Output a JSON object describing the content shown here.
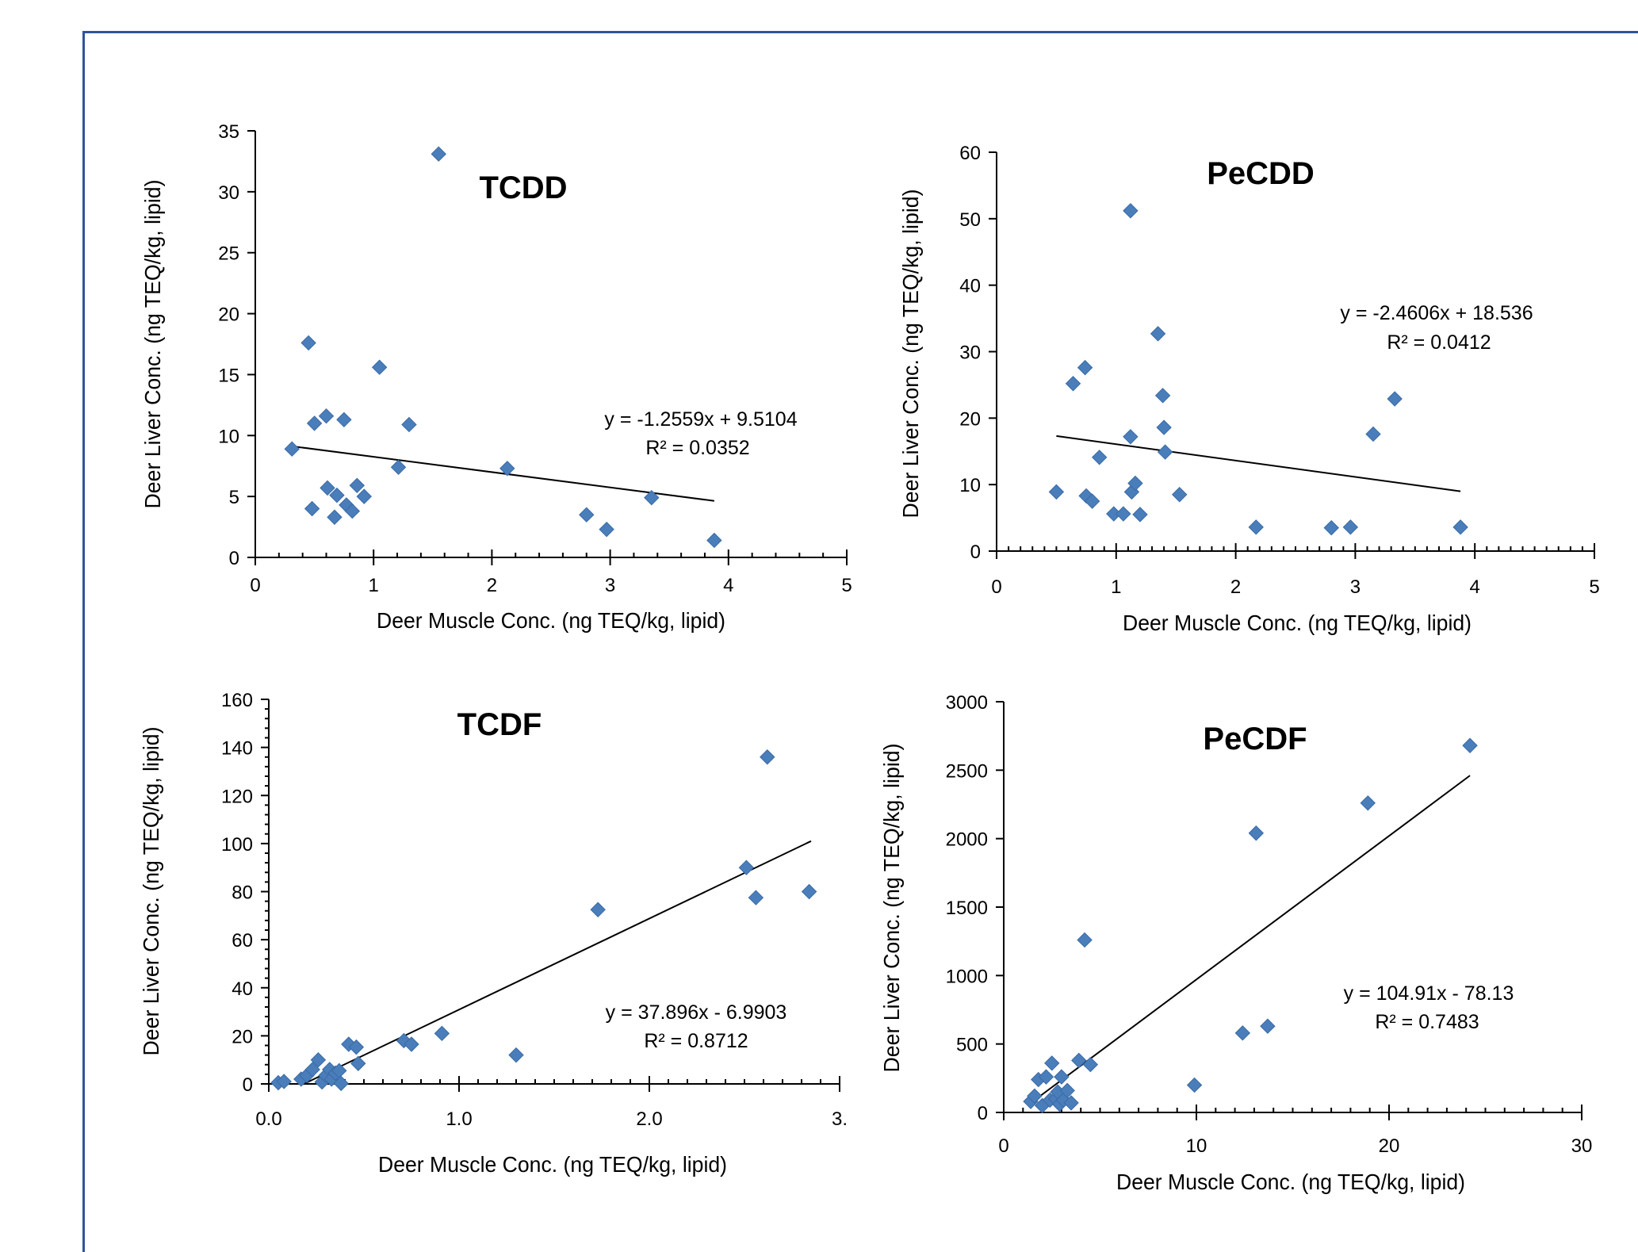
{
  "chart_data": [
    {
      "type": "scatter",
      "title": "TCDD",
      "xlabel": "Deer Muscle Conc. (ng TEQ/kg, lipid)",
      "ylabel": "Deer Liver Conc. (ng TEQ/kg, lipid)",
      "xlim": [
        0,
        5
      ],
      "ylim": [
        0,
        35
      ],
      "x_ticks": [
        "0",
        "1",
        "2",
        "3",
        "4",
        "5"
      ],
      "y_ticks": [
        "0",
        "5",
        "10",
        "15",
        "20",
        "25",
        "30",
        "35"
      ],
      "trendline": {
        "slope": -1.2559,
        "intercept": 9.5104,
        "x_range": [
          0.31,
          3.88
        ]
      },
      "equation": "y = -1.2559x + 9.5104",
      "r_squared": "R² = 0.0352",
      "marker_color": "#4a7ebb",
      "points": [
        [
          0.31,
          8.9
        ],
        [
          0.45,
          17.6
        ],
        [
          0.48,
          4.0
        ],
        [
          0.5,
          11.0
        ],
        [
          0.6,
          11.6
        ],
        [
          0.61,
          5.7
        ],
        [
          0.67,
          3.3
        ],
        [
          0.69,
          5.1
        ],
        [
          0.75,
          11.3
        ],
        [
          0.77,
          4.3
        ],
        [
          0.82,
          3.8
        ],
        [
          0.86,
          5.9
        ],
        [
          0.92,
          5.0
        ],
        [
          1.05,
          15.6
        ],
        [
          1.21,
          7.4
        ],
        [
          1.3,
          10.9
        ],
        [
          1.55,
          33.1
        ],
        [
          2.13,
          7.3
        ],
        [
          2.8,
          3.5
        ],
        [
          2.97,
          2.3
        ],
        [
          3.35,
          4.9
        ],
        [
          3.88,
          1.4
        ]
      ]
    },
    {
      "type": "scatter",
      "title": "PeCDD",
      "xlabel": "Deer Muscle Conc. (ng TEQ/kg, lipid)",
      "ylabel": "Deer Liver Conc. (ng TEQ/kg, lipid)",
      "xlim": [
        0,
        5
      ],
      "ylim": [
        0,
        60
      ],
      "x_ticks": [
        "0",
        "1",
        "2",
        "3",
        "4",
        "5"
      ],
      "y_ticks": [
        "0",
        "10",
        "20",
        "30",
        "40",
        "50",
        "60"
      ],
      "trendline": {
        "slope": -2.4606,
        "intercept": 18.536,
        "x_range": [
          0.5,
          3.88
        ]
      },
      "equation": "y = -2.4606x + 18.536",
      "r_squared": "R² = 0.0412",
      "marker_color": "#4a7ebb",
      "points": [
        [
          0.5,
          8.9
        ],
        [
          0.64,
          25.2
        ],
        [
          0.74,
          27.6
        ],
        [
          0.75,
          8.3
        ],
        [
          0.8,
          7.5
        ],
        [
          0.86,
          14.1
        ],
        [
          0.98,
          5.6
        ],
        [
          1.06,
          5.6
        ],
        [
          1.12,
          17.2
        ],
        [
          1.12,
          51.2
        ],
        [
          1.13,
          8.9
        ],
        [
          1.16,
          10.2
        ],
        [
          1.2,
          5.5
        ],
        [
          1.35,
          32.7
        ],
        [
          1.39,
          23.4
        ],
        [
          1.4,
          18.6
        ],
        [
          1.41,
          14.9
        ],
        [
          1.53,
          8.5
        ],
        [
          2.17,
          3.6
        ],
        [
          2.8,
          3.5
        ],
        [
          2.96,
          3.6
        ],
        [
          3.15,
          17.6
        ],
        [
          3.33,
          22.9
        ],
        [
          3.88,
          3.6
        ]
      ]
    },
    {
      "type": "scatter",
      "title": "TCDF",
      "xlabel": "Deer Muscle Conc. (ng TEQ/kg, lipid)",
      "ylabel": "Deer Liver Conc. (ng TEQ/kg, lipid)",
      "xlim": [
        0,
        3
      ],
      "ylim": [
        0,
        160
      ],
      "x_ticks": [
        "0.0",
        "1.0",
        "2.0",
        "3."
      ],
      "y_ticks": [
        "0",
        "20",
        "40",
        "60",
        "80",
        "100",
        "120",
        "140",
        "160"
      ],
      "trendline": {
        "slope": 37.896,
        "intercept": -6.9903,
        "x_range": [
          0.18,
          2.85
        ]
      },
      "equation": "y = 37.896x - 6.9903",
      "r_squared": "R² = 0.8712",
      "marker_color": "#4a7ebb",
      "points": [
        [
          0.05,
          0.5
        ],
        [
          0.08,
          1.0
        ],
        [
          0.17,
          2.0
        ],
        [
          0.2,
          3.5
        ],
        [
          0.23,
          6.0
        ],
        [
          0.26,
          10.0
        ],
        [
          0.28,
          0.8
        ],
        [
          0.3,
          3.5
        ],
        [
          0.32,
          6.0
        ],
        [
          0.33,
          2.0
        ],
        [
          0.35,
          4.5
        ],
        [
          0.37,
          5.5
        ],
        [
          0.38,
          0.2
        ],
        [
          0.42,
          16.5
        ],
        [
          0.46,
          15.3
        ],
        [
          0.47,
          8.5
        ],
        [
          0.71,
          18.0
        ],
        [
          0.75,
          16.5
        ],
        [
          0.91,
          21.0
        ],
        [
          1.3,
          12.0
        ],
        [
          1.73,
          72.5
        ],
        [
          2.51,
          90.0
        ],
        [
          2.56,
          77.5
        ],
        [
          2.62,
          136.0
        ],
        [
          2.84,
          80.0
        ]
      ]
    },
    {
      "type": "scatter",
      "title": "PeCDF",
      "xlabel": "Deer Muscle  Conc. (ng TEQ/kg, lipid)",
      "ylabel": "Deer Liver Conc. (ng TEQ/kg, lipid)",
      "xlim": [
        0,
        30
      ],
      "ylim": [
        0,
        3000
      ],
      "x_ticks": [
        "0",
        "10",
        "20",
        "30"
      ],
      "y_ticks": [
        "0",
        "500",
        "1000",
        "1500",
        "2000",
        "2500",
        "3000"
      ],
      "trendline": {
        "slope": 104.91,
        "intercept": -78.13,
        "x_range": [
          1.4,
          24.2
        ]
      },
      "equation": "y = 104.91x - 78.13",
      "r_squared": "R² = 0.7483",
      "marker_color": "#4a7ebb",
      "points": [
        [
          1.4,
          80
        ],
        [
          1.6,
          120
        ],
        [
          1.8,
          240
        ],
        [
          2.0,
          50
        ],
        [
          2.2,
          260
        ],
        [
          2.4,
          90
        ],
        [
          2.5,
          360
        ],
        [
          2.7,
          100
        ],
        [
          2.8,
          150
        ],
        [
          2.9,
          60
        ],
        [
          3.0,
          260
        ],
        [
          3.1,
          90
        ],
        [
          3.3,
          160
        ],
        [
          3.5,
          70
        ],
        [
          3.9,
          380
        ],
        [
          4.2,
          1260
        ],
        [
          4.5,
          350
        ],
        [
          9.9,
          200
        ],
        [
          12.4,
          580
        ],
        [
          13.1,
          2040
        ],
        [
          13.7,
          630
        ],
        [
          18.9,
          2260
        ],
        [
          24.2,
          2680
        ]
      ]
    }
  ]
}
